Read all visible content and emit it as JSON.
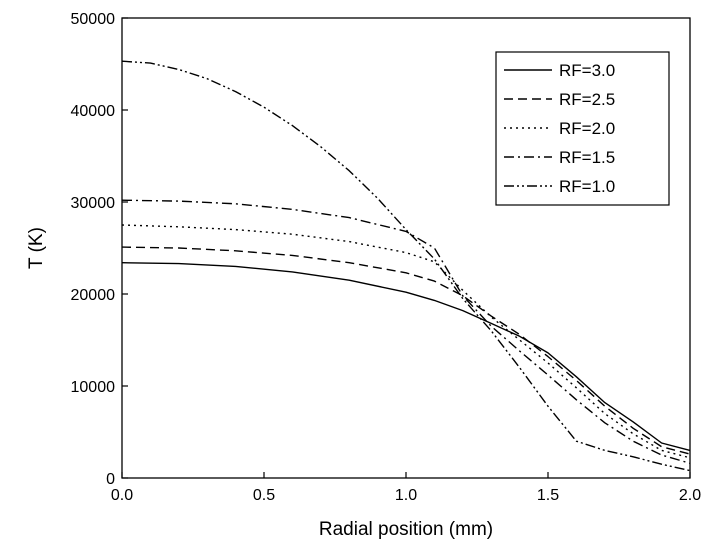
{
  "chart_data": {
    "type": "line",
    "title": "",
    "xlabel": "Radial position (mm)",
    "ylabel": "T (K)",
    "xlim": [
      0.0,
      2.0
    ],
    "ylim": [
      0,
      50000
    ],
    "xticks": [
      0.0,
      0.5,
      1.0,
      1.5,
      2.0
    ],
    "xtick_labels": [
      "0.0",
      "0.5",
      "1.0",
      "1.5",
      "2.0"
    ],
    "yticks": [
      0,
      10000,
      20000,
      30000,
      40000,
      50000
    ],
    "ytick_labels": [
      "0",
      "10000",
      "20000",
      "30000",
      "40000",
      "50000"
    ],
    "grid": false,
    "legend_position": "top-right",
    "series": [
      {
        "name": "RF=3.0",
        "dash": "solid",
        "x": [
          0.0,
          0.2,
          0.4,
          0.6,
          0.8,
          1.0,
          1.1,
          1.2,
          1.3,
          1.4,
          1.5,
          1.6,
          1.7,
          1.8,
          1.9,
          2.0
        ],
        "y": [
          23400,
          23300,
          23000,
          22400,
          21500,
          20200,
          19300,
          18200,
          16800,
          15400,
          13600,
          11000,
          8200,
          6100,
          3800,
          3000
        ]
      },
      {
        "name": "RF=2.5",
        "dash": "dashed",
        "x": [
          0.0,
          0.2,
          0.4,
          0.6,
          0.8,
          1.0,
          1.1,
          1.2,
          1.3,
          1.4,
          1.5,
          1.6,
          1.7,
          1.8,
          1.9,
          2.0
        ],
        "y": [
          25100,
          25000,
          24700,
          24200,
          23400,
          22300,
          21400,
          19800,
          17600,
          15600,
          13200,
          10600,
          7800,
          5400,
          3400,
          2600
        ]
      },
      {
        "name": "RF=2.0",
        "dash": "dotted",
        "x": [
          0.0,
          0.2,
          0.4,
          0.6,
          0.8,
          1.0,
          1.1,
          1.2,
          1.3,
          1.4,
          1.5,
          1.6,
          1.7,
          1.8,
          1.9,
          2.0
        ],
        "y": [
          27500,
          27300,
          27000,
          26500,
          25700,
          24500,
          23500,
          20400,
          17500,
          15000,
          12500,
          9800,
          7000,
          4800,
          3000,
          2200
        ]
      },
      {
        "name": "RF=1.5",
        "dash": "dash-dot",
        "x": [
          0.0,
          0.2,
          0.4,
          0.6,
          0.8,
          1.0,
          1.1,
          1.2,
          1.3,
          1.4,
          1.5,
          1.6,
          1.7,
          1.8,
          1.9,
          2.0
        ],
        "y": [
          30200,
          30100,
          29800,
          29200,
          28300,
          26800,
          25000,
          19800,
          16500,
          13800,
          11200,
          8500,
          6000,
          4000,
          2500,
          1600
        ]
      },
      {
        "name": "RF=1.0",
        "dash": "dash-dot-dot",
        "x": [
          0.0,
          0.1,
          0.2,
          0.3,
          0.4,
          0.5,
          0.6,
          0.7,
          0.8,
          0.9,
          1.0,
          1.1,
          1.2,
          1.3,
          1.4,
          1.5,
          1.6,
          1.7,
          1.8,
          1.9,
          2.0
        ],
        "y": [
          45300,
          45100,
          44400,
          43400,
          42000,
          40300,
          38300,
          36000,
          33400,
          30400,
          27000,
          23800,
          19500,
          16000,
          12000,
          7800,
          4000,
          3000,
          2300,
          1500,
          800
        ]
      }
    ]
  }
}
